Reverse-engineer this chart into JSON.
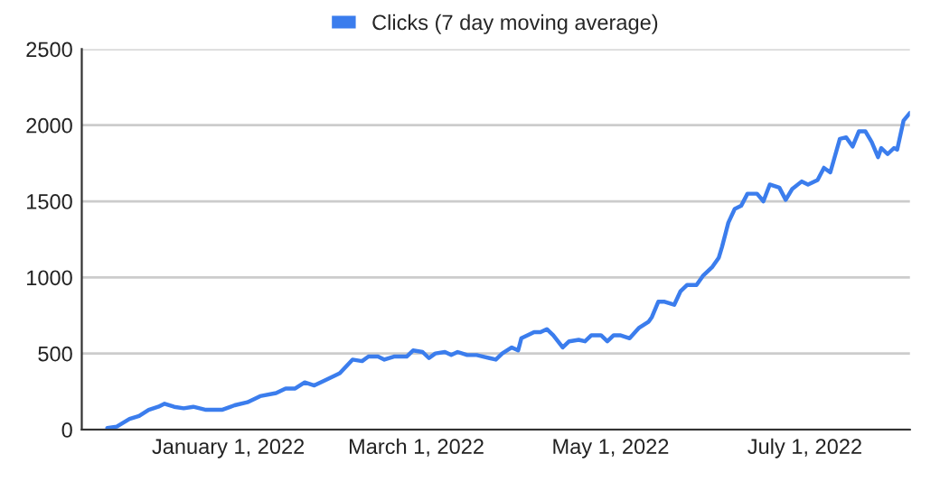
{
  "chart_data": {
    "type": "line",
    "legend": "top",
    "grid": "y",
    "xlim": [
      "2021-11-16",
      "2022-08-03"
    ],
    "ylim": [
      0,
      2500
    ],
    "yticks": [
      0,
      500,
      1000,
      1500,
      2000,
      2500
    ],
    "xticks": [
      {
        "value": "2022-01-01",
        "label": "January 1, 2022"
      },
      {
        "value": "2022-03-01",
        "label": "March 1, 2022"
      },
      {
        "value": "2022-05-01",
        "label": "May 1, 2022"
      },
      {
        "value": "2022-07-01",
        "label": "July 1, 2022"
      }
    ],
    "x": [
      "2021-11-24",
      "2021-11-27",
      "2021-12-01",
      "2021-12-04",
      "2021-12-07",
      "2021-12-10",
      "2021-12-12",
      "2021-12-15",
      "2021-12-18",
      "2021-12-21",
      "2021-12-25",
      "2021-12-30",
      "2022-01-03",
      "2022-01-07",
      "2022-01-11",
      "2022-01-16",
      "2022-01-19",
      "2022-01-22",
      "2022-01-25",
      "2022-01-28",
      "2022-01-31",
      "2022-02-04",
      "2022-02-05",
      "2022-02-09",
      "2022-02-12",
      "2022-02-14",
      "2022-02-17",
      "2022-02-19",
      "2022-02-22",
      "2022-02-26",
      "2022-02-28",
      "2022-03-03",
      "2022-03-05",
      "2022-03-07",
      "2022-03-10",
      "2022-03-12",
      "2022-03-14",
      "2022-03-17",
      "2022-03-20",
      "2022-03-22",
      "2022-03-24",
      "2022-03-26",
      "2022-03-28",
      "2022-03-31",
      "2022-04-02",
      "2022-04-03",
      "2022-04-07",
      "2022-04-09",
      "2022-04-11",
      "2022-04-13",
      "2022-04-16",
      "2022-04-18",
      "2022-04-21",
      "2022-04-23",
      "2022-04-25",
      "2022-04-28",
      "2022-04-30",
      "2022-05-02",
      "2022-05-04",
      "2022-05-07",
      "2022-05-10",
      "2022-05-13",
      "2022-05-14",
      "2022-05-16",
      "2022-05-18",
      "2022-05-21",
      "2022-05-23",
      "2022-05-25",
      "2022-05-28",
      "2022-05-30",
      "2022-06-02",
      "2022-06-04",
      "2022-06-05",
      "2022-06-07",
      "2022-06-09",
      "2022-06-11",
      "2022-06-13",
      "2022-06-16",
      "2022-06-18",
      "2022-06-20",
      "2022-06-23",
      "2022-06-25",
      "2022-06-27",
      "2022-06-30",
      "2022-07-02",
      "2022-07-05",
      "2022-07-07",
      "2022-07-09",
      "2022-07-12",
      "2022-07-14",
      "2022-07-16",
      "2022-07-18",
      "2022-07-20",
      "2022-07-22",
      "2022-07-24",
      "2022-07-25",
      "2022-07-27",
      "2022-07-29",
      "2022-07-30",
      "2022-08-01",
      "2022-08-03"
    ],
    "series": [
      {
        "name": "Clicks (7 day moving average)",
        "color": "#3b7ded",
        "values": [
          10,
          20,
          70,
          90,
          130,
          150,
          170,
          150,
          140,
          150,
          130,
          130,
          160,
          180,
          220,
          240,
          270,
          270,
          310,
          290,
          320,
          360,
          370,
          460,
          450,
          480,
          480,
          460,
          480,
          480,
          520,
          510,
          470,
          500,
          510,
          490,
          510,
          490,
          490,
          480,
          470,
          460,
          500,
          540,
          520,
          600,
          640,
          640,
          660,
          620,
          540,
          580,
          590,
          580,
          620,
          620,
          580,
          620,
          620,
          600,
          670,
          710,
          740,
          840,
          840,
          820,
          910,
          950,
          950,
          1010,
          1070,
          1130,
          1200,
          1360,
          1450,
          1470,
          1550,
          1550,
          1500,
          1610,
          1590,
          1510,
          1580,
          1630,
          1610,
          1640,
          1720,
          1690,
          1910,
          1920,
          1860,
          1960,
          1960,
          1890,
          1790,
          1850,
          1810,
          1850,
          1840,
          2030,
          2080
        ]
      }
    ]
  }
}
